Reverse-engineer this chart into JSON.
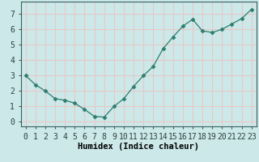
{
  "x": [
    0,
    1,
    2,
    3,
    4,
    5,
    6,
    7,
    8,
    9,
    10,
    11,
    12,
    13,
    14,
    15,
    16,
    17,
    18,
    19,
    20,
    21,
    22,
    23
  ],
  "y": [
    3.0,
    2.4,
    2.0,
    1.5,
    1.4,
    1.2,
    0.8,
    0.35,
    0.3,
    1.0,
    1.5,
    2.3,
    3.0,
    3.6,
    4.75,
    5.5,
    6.2,
    6.65,
    5.9,
    5.8,
    6.0,
    6.35,
    6.7,
    7.3
  ],
  "line_color": "#2d7d6e",
  "marker": "D",
  "marker_size": 2.5,
  "background_color": "#cce8e8",
  "grid_color": "#e8c8c8",
  "xlabel": "Humidex (Indice chaleur)",
  "xlabel_fontsize": 7.5,
  "tick_fontsize": 7,
  "ylim": [
    -0.3,
    7.8
  ],
  "xlim": [
    -0.5,
    23.5
  ],
  "yticks": [
    0,
    1,
    2,
    3,
    4,
    5,
    6,
    7
  ],
  "xticks": [
    0,
    1,
    2,
    3,
    4,
    5,
    6,
    7,
    8,
    9,
    10,
    11,
    12,
    13,
    14,
    15,
    16,
    17,
    18,
    19,
    20,
    21,
    22,
    23
  ]
}
